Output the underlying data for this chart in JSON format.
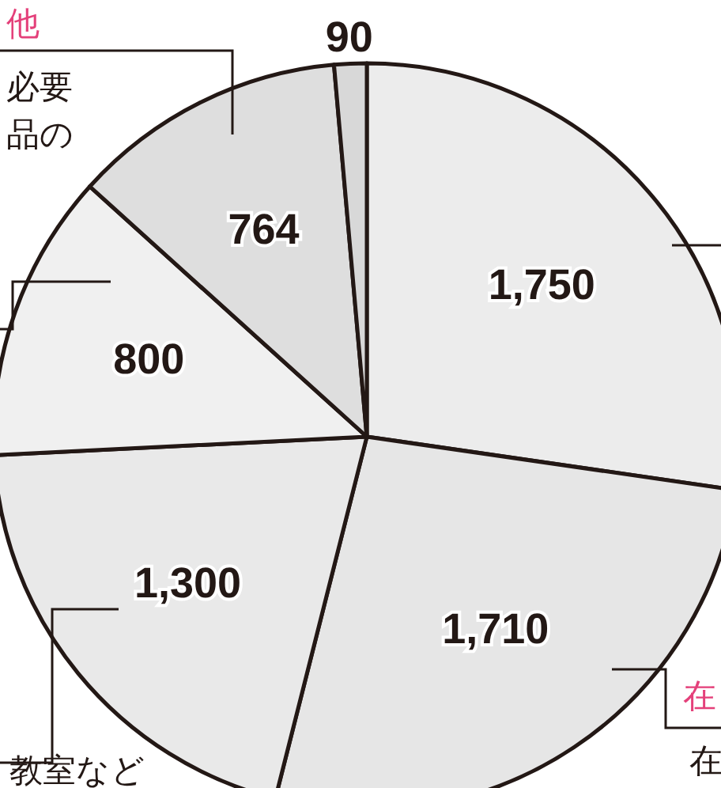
{
  "chart_data": {
    "type": "pie",
    "categories": [
      null,
      null,
      null,
      null,
      null,
      null
    ],
    "values": [
      1750,
      1710,
      1300,
      800,
      764,
      90
    ],
    "colors": [
      "#ececec",
      "#e6e6e6",
      "#e9e9e9",
      "#f0f0f0",
      "#dedede",
      "#d8d8d8"
    ],
    "value_labels": [
      "1,750",
      "1,710",
      "1,300",
      "800",
      "764",
      "90"
    ],
    "annotations": [
      "他",
      "必要",
      "品の",
      "在",
      "在",
      "教室など"
    ]
  }
}
